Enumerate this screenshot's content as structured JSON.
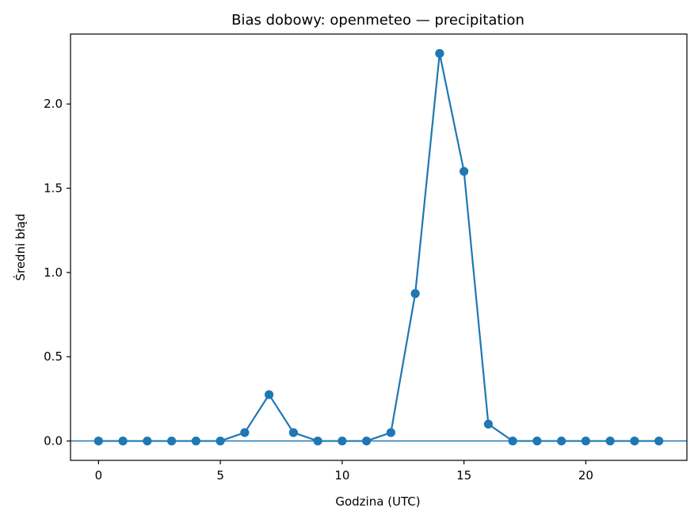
{
  "chart_data": {
    "type": "line",
    "title": "Bias dobowy: openmeteo — precipitation",
    "xlabel": "Godzina (UTC)",
    "ylabel": "Średni błąd",
    "xlim": [
      -1.15,
      24.15
    ],
    "ylim": [
      -0.115,
      2.415
    ],
    "xticks": [
      0,
      5,
      10,
      15,
      20
    ],
    "xtick_labels": [
      "0",
      "5",
      "10",
      "15",
      "20"
    ],
    "yticks": [
      0.0,
      0.5,
      1.0,
      1.5,
      2.0
    ],
    "ytick_labels": [
      "0.0",
      "0.5",
      "1.0",
      "1.5",
      "2.0"
    ],
    "grid": false,
    "reference_line": {
      "y": 0
    },
    "colors": {
      "series": "#1f77b4",
      "axes": "#000000"
    },
    "series": [
      {
        "x": [
          0,
          1,
          2,
          3,
          4,
          5,
          6,
          7,
          8,
          9,
          10,
          11,
          12,
          13,
          14,
          15,
          16,
          17,
          18,
          19,
          20,
          21,
          22,
          23
        ],
        "values": [
          0,
          0,
          0,
          0,
          0,
          0,
          0.05,
          0.275,
          0.05,
          0,
          0,
          0,
          0.05,
          0.875,
          2.3,
          1.6,
          0.1,
          0,
          0,
          0,
          0,
          0,
          0,
          0
        ]
      }
    ]
  }
}
